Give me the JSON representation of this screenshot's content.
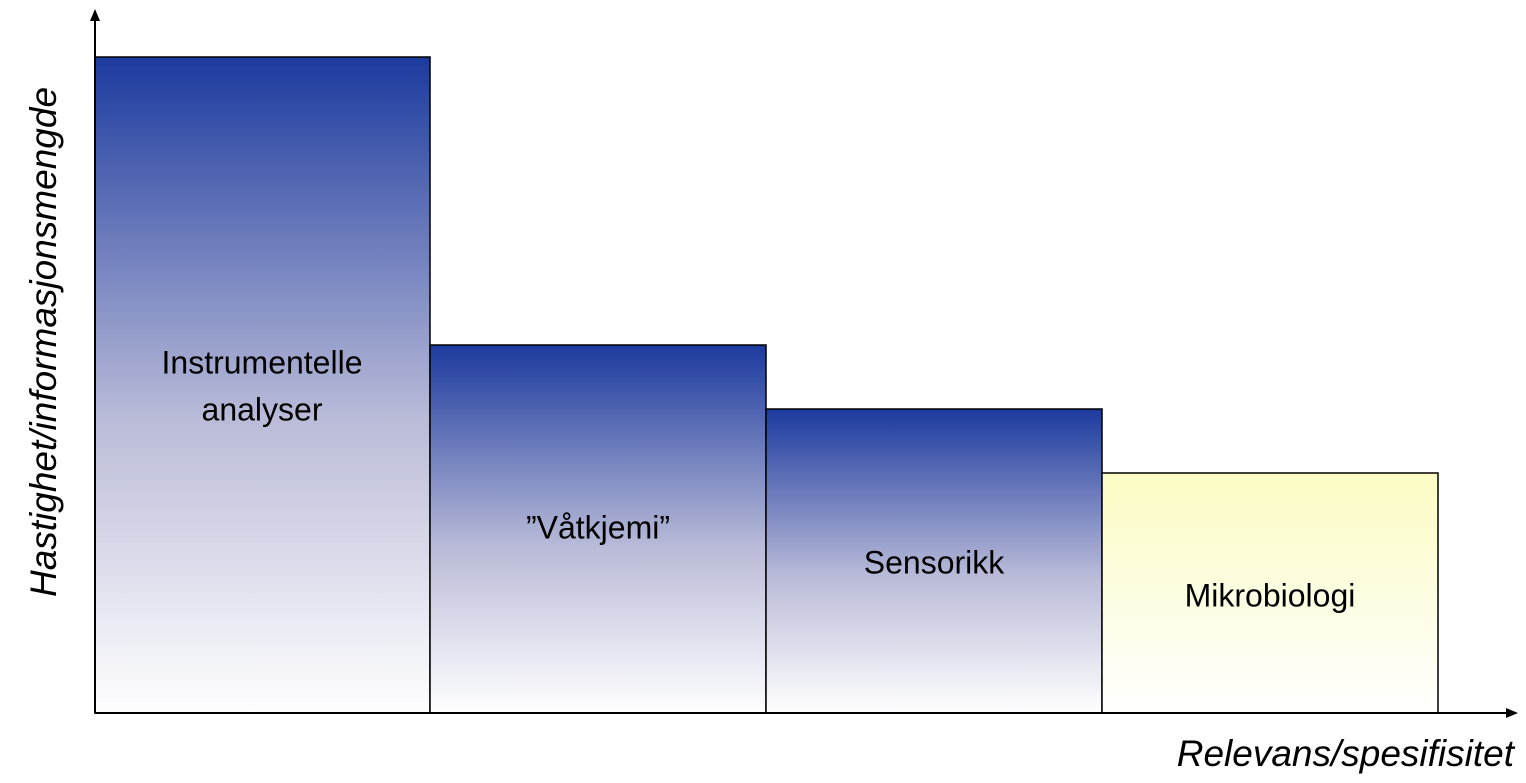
{
  "axes": {
    "y_label": "Hastighet/informasjonsmengde",
    "x_label": "Relevans/spesifisitet"
  },
  "blocks": [
    {
      "label": [
        "Instrumentelle",
        "analyser"
      ]
    },
    {
      "label": [
        "”Våtkjemi”"
      ]
    },
    {
      "label": [
        "Sensorikk"
      ]
    },
    {
      "label": [
        "Mikrobiologi"
      ]
    }
  ]
}
